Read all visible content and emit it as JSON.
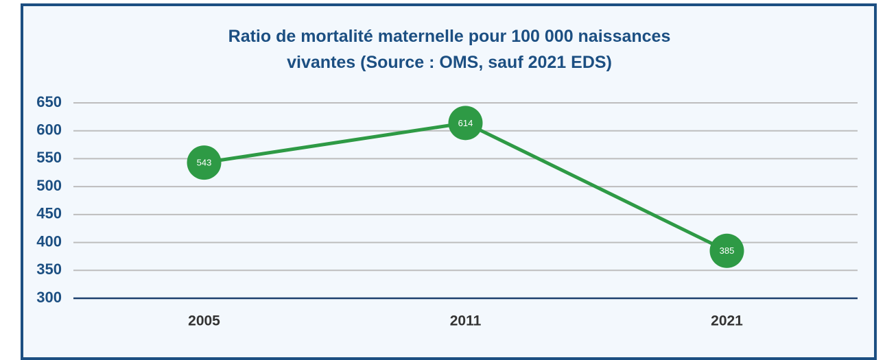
{
  "chart_data": {
    "type": "line",
    "title": "Ratio de mortalité maternelle pour 100 000 naissances vivantes (Source : OMS, sauf 2021 EDS)",
    "categories": [
      "2005",
      "2011",
      "2021"
    ],
    "values": [
      543,
      614,
      385
    ],
    "color": "#2e9a45",
    "ylim": [
      300,
      650
    ],
    "yticks": [
      300,
      350,
      400,
      450,
      500,
      550,
      600,
      650
    ],
    "grid": true
  }
}
